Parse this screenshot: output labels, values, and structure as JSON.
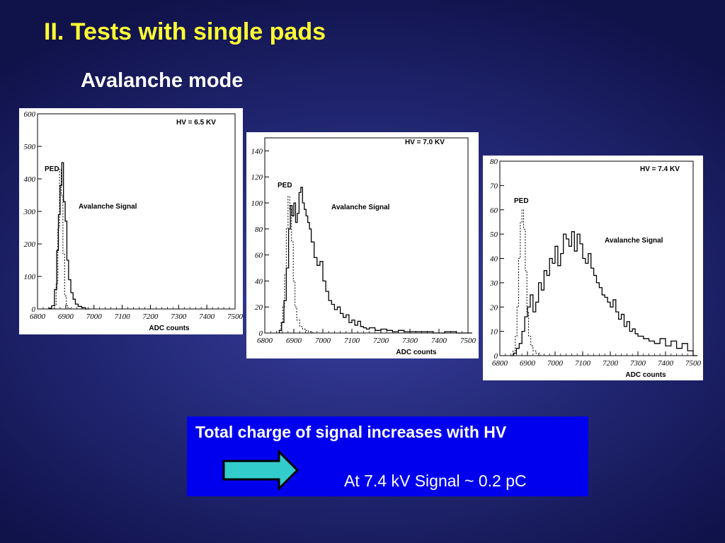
{
  "slide": {
    "title": "II. Tests with single pads",
    "subtitle": "Avalanche mode"
  },
  "callout": {
    "line1": "Total charge of signal increases with HV",
    "line2": "At 7.4 kV Signal ~ 0.2 pC",
    "arrow_icon": "right-arrow-icon",
    "box_color": "#0000ee",
    "arrow_color": "#33cccc"
  },
  "chart_data": [
    {
      "type": "line",
      "hv_label": "HV = 6.5 KV",
      "ped_label": "PED",
      "signal_label": "Avalanche Signal",
      "xlabel": "ADC counts",
      "xlim": [
        6800,
        7500
      ],
      "ylim": [
        0,
        600
      ],
      "xticks": [
        6800,
        6900,
        7000,
        7100,
        7200,
        7300,
        7400,
        7500
      ],
      "yticks": [
        0,
        100,
        200,
        300,
        400,
        500,
        600
      ],
      "series": [
        {
          "style": "dotted",
          "x": [
            6860,
            6866,
            6872,
            6878,
            6884,
            6890,
            6896,
            6902,
            6908,
            6914
          ],
          "y": [
            10,
            80,
            250,
            430,
            350,
            170,
            40,
            10,
            3,
            0
          ]
        },
        {
          "style": "solid",
          "x": [
            6840,
            6850,
            6860,
            6868,
            6874,
            6880,
            6886,
            6892,
            6898,
            6904,
            6910,
            6918,
            6926,
            6934,
            6944,
            6956,
            6970
          ],
          "y": [
            2,
            10,
            60,
            180,
            290,
            380,
            450,
            330,
            270,
            150,
            90,
            50,
            30,
            15,
            8,
            4,
            0
          ]
        }
      ]
    },
    {
      "type": "line",
      "hv_label": "HV = 7.0 KV",
      "ped_label": "PED",
      "signal_label": "Avalanche Signal",
      "xlabel": "ADC counts",
      "xlim": [
        6800,
        7500
      ],
      "ylim": [
        0,
        150
      ],
      "xticks": [
        6800,
        6900,
        7000,
        7100,
        7200,
        7300,
        7400,
        7500
      ],
      "yticks": [
        0,
        20,
        40,
        60,
        80,
        100,
        120,
        140
      ],
      "series": [
        {
          "style": "dotted",
          "x": [
            6850,
            6856,
            6862,
            6868,
            6874,
            6880,
            6886,
            6892,
            6898,
            6904,
            6910,
            6920,
            6930,
            6940,
            6950,
            6965
          ],
          "y": [
            2,
            8,
            20,
            45,
            80,
            105,
            95,
            70,
            40,
            20,
            10,
            5,
            3,
            2,
            1,
            0
          ]
        },
        {
          "style": "solid",
          "x": [
            6850,
            6858,
            6866,
            6874,
            6882,
            6888,
            6894,
            6900,
            6906,
            6912,
            6918,
            6924,
            6930,
            6936,
            6942,
            6948,
            6954,
            6960,
            6970,
            6980,
            6990,
            7000,
            7010,
            7020,
            7030,
            7040,
            7050,
            7060,
            7070,
            7080,
            7090,
            7100,
            7110,
            7120,
            7130,
            7140,
            7150,
            7160,
            7180,
            7200,
            7220,
            7240,
            7260,
            7280,
            7300,
            7340,
            7380,
            7420,
            7460,
            7500
          ],
          "y": [
            2,
            8,
            25,
            50,
            80,
            98,
            90,
            100,
            85,
            92,
            108,
            112,
            100,
            95,
            90,
            85,
            80,
            70,
            58,
            52,
            55,
            40,
            32,
            25,
            22,
            18,
            20,
            15,
            12,
            14,
            8,
            10,
            6,
            9,
            5,
            4,
            3,
            4,
            2,
            3,
            2,
            1,
            2,
            1,
            1,
            1,
            0,
            1,
            0,
            0
          ]
        }
      ]
    },
    {
      "type": "line",
      "hv_label": "HV = 7.4 KV",
      "ped_label": "PED",
      "signal_label": "Avalanche Signal",
      "xlabel": "ADC counts",
      "xlim": [
        6800,
        7500
      ],
      "ylim": [
        0,
        80
      ],
      "xticks": [
        6800,
        6900,
        7000,
        7100,
        7200,
        7300,
        7400,
        7500
      ],
      "yticks": [
        0,
        10,
        20,
        30,
        40,
        50,
        60,
        70,
        80
      ],
      "series": [
        {
          "style": "dotted",
          "x": [
            6840,
            6848,
            6856,
            6862,
            6868,
            6874,
            6880,
            6886,
            6892,
            6898,
            6904,
            6912,
            6920,
            6930,
            6945,
            6960
          ],
          "y": [
            0,
            2,
            8,
            20,
            40,
            55,
            60,
            52,
            35,
            18,
            8,
            4,
            2,
            1,
            0,
            0
          ]
        },
        {
          "style": "solid",
          "x": [
            6840,
            6850,
            6860,
            6870,
            6880,
            6890,
            6900,
            6910,
            6920,
            6930,
            6940,
            6950,
            6960,
            6970,
            6980,
            6990,
            7000,
            7010,
            7020,
            7030,
            7040,
            7050,
            7060,
            7070,
            7080,
            7090,
            7100,
            7110,
            7120,
            7130,
            7140,
            7150,
            7160,
            7170,
            7180,
            7190,
            7200,
            7210,
            7220,
            7230,
            7240,
            7250,
            7260,
            7270,
            7280,
            7290,
            7300,
            7320,
            7340,
            7360,
            7380,
            7400,
            7420,
            7440,
            7460,
            7480,
            7500
          ],
          "y": [
            0,
            1,
            3,
            5,
            10,
            16,
            20,
            25,
            18,
            22,
            30,
            27,
            35,
            33,
            40,
            38,
            45,
            37,
            42,
            50,
            48,
            45,
            51,
            43,
            50,
            46,
            40,
            38,
            42,
            36,
            33,
            30,
            28,
            25,
            24,
            22,
            20,
            23,
            18,
            15,
            17,
            12,
            14,
            10,
            11,
            9,
            8,
            7,
            6,
            5,
            7,
            4,
            6,
            3,
            5,
            2,
            0
          ]
        }
      ]
    }
  ]
}
